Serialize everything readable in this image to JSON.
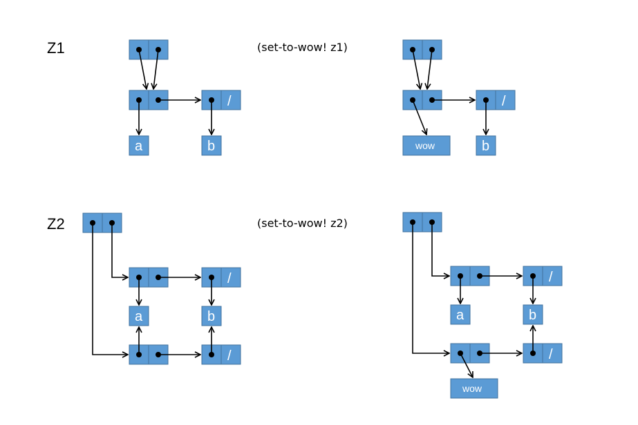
{
  "labels": {
    "z1": "Z1",
    "z2": "Z2"
  },
  "captions": {
    "z1": "(set-to-wow! z1)",
    "z2": "(set-to-wow! z2)"
  },
  "atoms": {
    "a": "a",
    "b": "b",
    "wow": "wow",
    "nil": "/"
  },
  "colors": {
    "cell_fill": "#5b9bd5",
    "cell_stroke": "#41719c",
    "atom_text": "#ffffff"
  }
}
